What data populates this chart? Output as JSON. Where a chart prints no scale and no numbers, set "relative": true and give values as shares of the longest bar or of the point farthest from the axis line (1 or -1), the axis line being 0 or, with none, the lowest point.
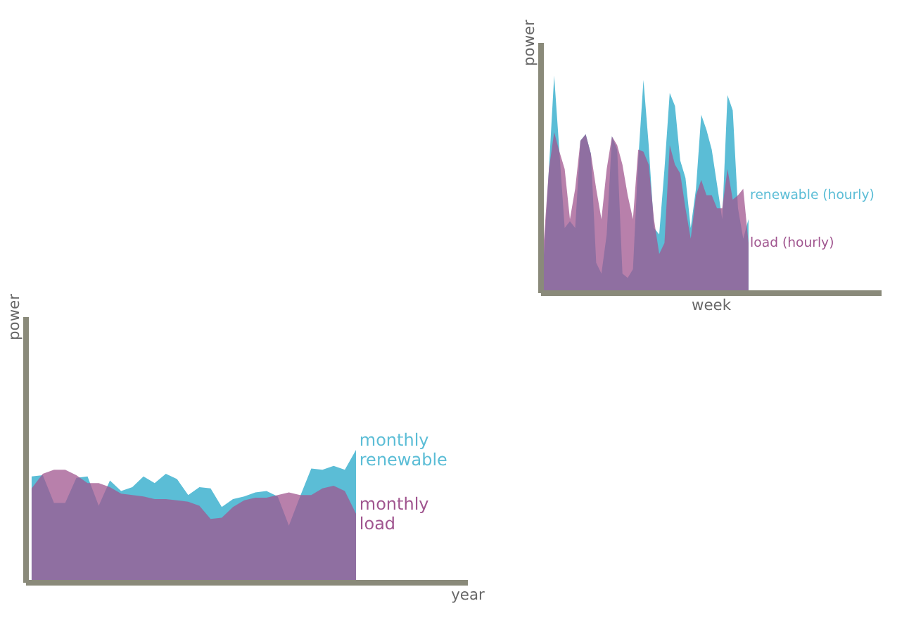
{
  "chart_data": [
    {
      "type": "area",
      "relative": true,
      "xlabel": "year",
      "ylabel": "power",
      "categories": [
        null,
        null,
        null,
        null,
        null,
        null,
        null,
        null,
        null,
        null,
        null,
        null,
        null,
        null,
        null,
        null,
        null,
        null,
        null,
        null,
        null,
        null,
        null,
        null,
        null,
        null,
        null,
        null,
        null,
        null
      ],
      "series": [
        {
          "name": "monthly renewable",
          "color": "#5bbdd6",
          "values": [
            0.8,
            0.81,
            0.6,
            0.6,
            0.79,
            0.8,
            0.58,
            0.77,
            0.69,
            0.72,
            0.8,
            0.75,
            0.82,
            0.78,
            0.66,
            0.72,
            0.71,
            0.57,
            0.63,
            0.65,
            0.68,
            0.69,
            0.65,
            0.43,
            0.65,
            0.86,
            0.85,
            0.88,
            0.85,
            1.0
          ]
        },
        {
          "name": "monthly load",
          "color": "#a0558f",
          "values": [
            0.71,
            0.82,
            0.85,
            0.85,
            0.81,
            0.75,
            0.75,
            0.72,
            0.67,
            0.66,
            0.65,
            0.63,
            0.63,
            0.62,
            0.61,
            0.58,
            0.48,
            0.49,
            0.57,
            0.62,
            0.64,
            0.64,
            0.66,
            0.68,
            0.66,
            0.66,
            0.71,
            0.73,
            0.69,
            0.52
          ]
        }
      ]
    },
    {
      "type": "area",
      "relative": true,
      "xlabel": "week",
      "ylabel": "power",
      "categories": [
        null,
        null,
        null,
        null,
        null,
        null,
        null,
        null,
        null,
        null,
        null,
        null,
        null,
        null,
        null,
        null,
        null,
        null,
        null,
        null,
        null,
        null,
        null,
        null,
        null,
        null,
        null,
        null,
        null,
        null,
        null,
        null,
        null,
        null,
        null,
        null,
        null,
        null,
        null,
        null
      ],
      "series": [
        {
          "name": "renewable (hourly)",
          "color": "#5bbdd6",
          "values": [
            0.16,
            0.57,
            1.0,
            0.65,
            0.3,
            0.33,
            0.3,
            0.7,
            0.73,
            0.64,
            0.14,
            0.09,
            0.27,
            0.72,
            0.66,
            0.09,
            0.07,
            0.11,
            0.61,
            0.98,
            0.68,
            0.3,
            0.27,
            0.57,
            0.92,
            0.86,
            0.61,
            0.53,
            0.3,
            0.48,
            0.82,
            0.75,
            0.66,
            0.5,
            0.34,
            0.91,
            0.84,
            0.39,
            0.25,
            0.34
          ]
        },
        {
          "name": "load (hourly)",
          "color": "#a0558f",
          "values": [
            0.23,
            0.57,
            0.74,
            0.65,
            0.57,
            0.34,
            0.48,
            0.7,
            0.73,
            0.64,
            0.48,
            0.34,
            0.57,
            0.72,
            0.68,
            0.59,
            0.45,
            0.34,
            0.66,
            0.65,
            0.59,
            0.34,
            0.18,
            0.23,
            0.68,
            0.59,
            0.55,
            0.39,
            0.25,
            0.45,
            0.52,
            0.45,
            0.45,
            0.39,
            0.39,
            0.57,
            0.43,
            0.45,
            0.48,
            0.23
          ]
        }
      ]
    }
  ]
}
